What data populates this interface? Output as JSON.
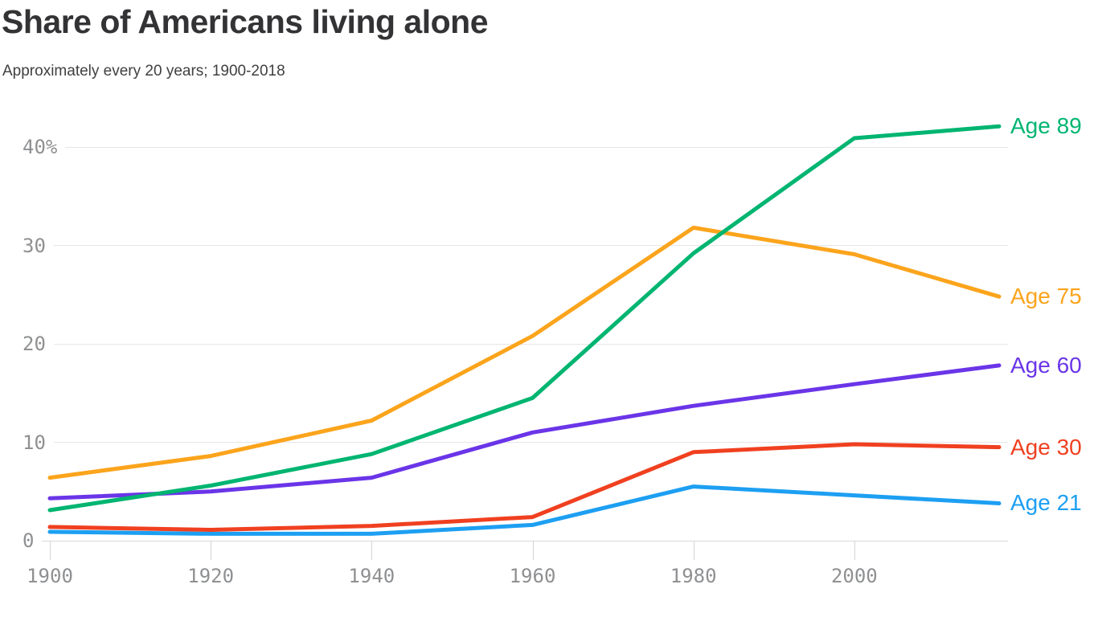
{
  "title": "Share of Americans living alone",
  "subtitle": "Approximately every 20 years; 1900-2018",
  "colors": {
    "background": "#ffffff",
    "title_text": "#333335",
    "subtitle_text": "#404042",
    "axis_text": "#8f9092",
    "gridline": "#e6e6e6",
    "axis_line": "#d8d8d8",
    "age_89": "#00b571",
    "age_75": "#fba41c",
    "age_60": "#6a35e8",
    "age_30": "#f04020",
    "age_21": "#1d9ff2"
  },
  "chart_data": {
    "type": "line",
    "title": "Share of Americans living alone",
    "subtitle": "Approximately every 20 years; 1900-2018",
    "x": [
      1900,
      1920,
      1940,
      1960,
      1980,
      2000,
      2018
    ],
    "series": [
      {
        "name": "Age 89",
        "color": "#00b571",
        "values": [
          3.1,
          5.6,
          8.8,
          14.5,
          29.2,
          40.9,
          42.1
        ]
      },
      {
        "name": "Age 75",
        "color": "#fba41c",
        "values": [
          6.4,
          8.6,
          12.2,
          20.8,
          31.8,
          29.1,
          24.8
        ]
      },
      {
        "name": "Age 60",
        "color": "#6a35e8",
        "values": [
          4.3,
          5.0,
          6.4,
          11.0,
          13.7,
          15.9,
          17.8
        ]
      },
      {
        "name": "Age 30",
        "color": "#f04020",
        "values": [
          1.4,
          1.1,
          1.5,
          2.4,
          9.0,
          9.8,
          9.5
        ]
      },
      {
        "name": "Age 21",
        "color": "#1d9ff2",
        "values": [
          0.9,
          0.7,
          0.7,
          1.6,
          5.5,
          4.6,
          3.8
        ]
      }
    ],
    "xlabel": "",
    "ylabel": "",
    "xlim": [
      1900,
      2018
    ],
    "ylim": [
      0,
      43
    ],
    "yticks": [
      {
        "value": 40,
        "label": "40%"
      },
      {
        "value": 30,
        "label": "30"
      },
      {
        "value": 20,
        "label": "20"
      },
      {
        "value": 10,
        "label": "10"
      },
      {
        "value": 0,
        "label": "0"
      }
    ],
    "xticks": [
      {
        "value": 1900,
        "label": "1900"
      },
      {
        "value": 1920,
        "label": "1920"
      },
      {
        "value": 1940,
        "label": "1940"
      },
      {
        "value": 1960,
        "label": "1960"
      },
      {
        "value": 1980,
        "label": "1980"
      },
      {
        "value": 2000,
        "label": "2000"
      }
    ],
    "grid": true,
    "legend_position": "right-at-line-ends"
  }
}
